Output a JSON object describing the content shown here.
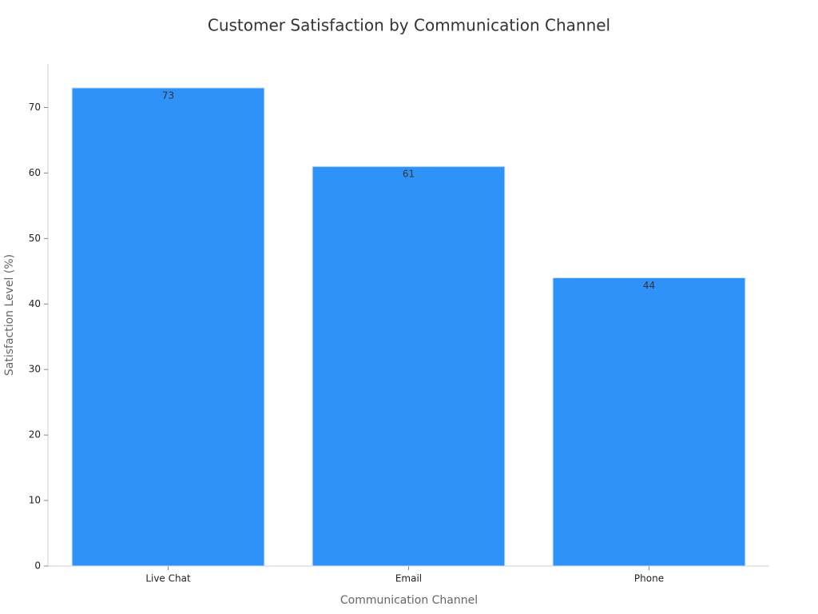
{
  "chart_data": {
    "type": "bar",
    "title": "Customer Satisfaction by Communication Channel",
    "x_label": "Communication Channel",
    "y_label": "Satisfaction Level (%)",
    "categories": [
      "Live Chat",
      "Email",
      "Phone"
    ],
    "values": [
      73,
      61,
      44
    ],
    "color": "#2f92f8",
    "ylim": [
      0,
      76.65
    ],
    "yticks": [
      0,
      10,
      20,
      30,
      40,
      50,
      60,
      70
    ],
    "grid": false
  }
}
